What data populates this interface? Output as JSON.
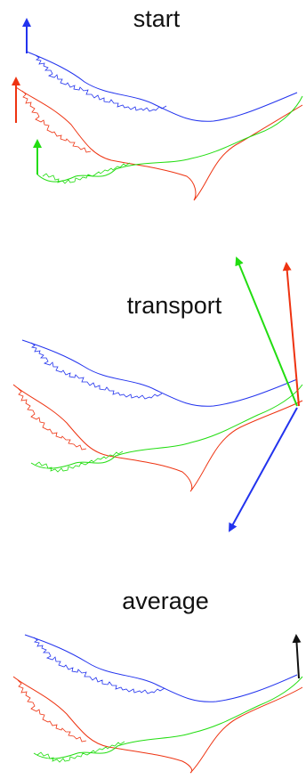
{
  "panels": [
    {
      "title": "start"
    },
    {
      "title": "transport"
    },
    {
      "title": "average"
    }
  ],
  "colors": {
    "blue": "#2233ee",
    "red": "#ee3311",
    "green": "#22dd11",
    "black": "#111111"
  }
}
